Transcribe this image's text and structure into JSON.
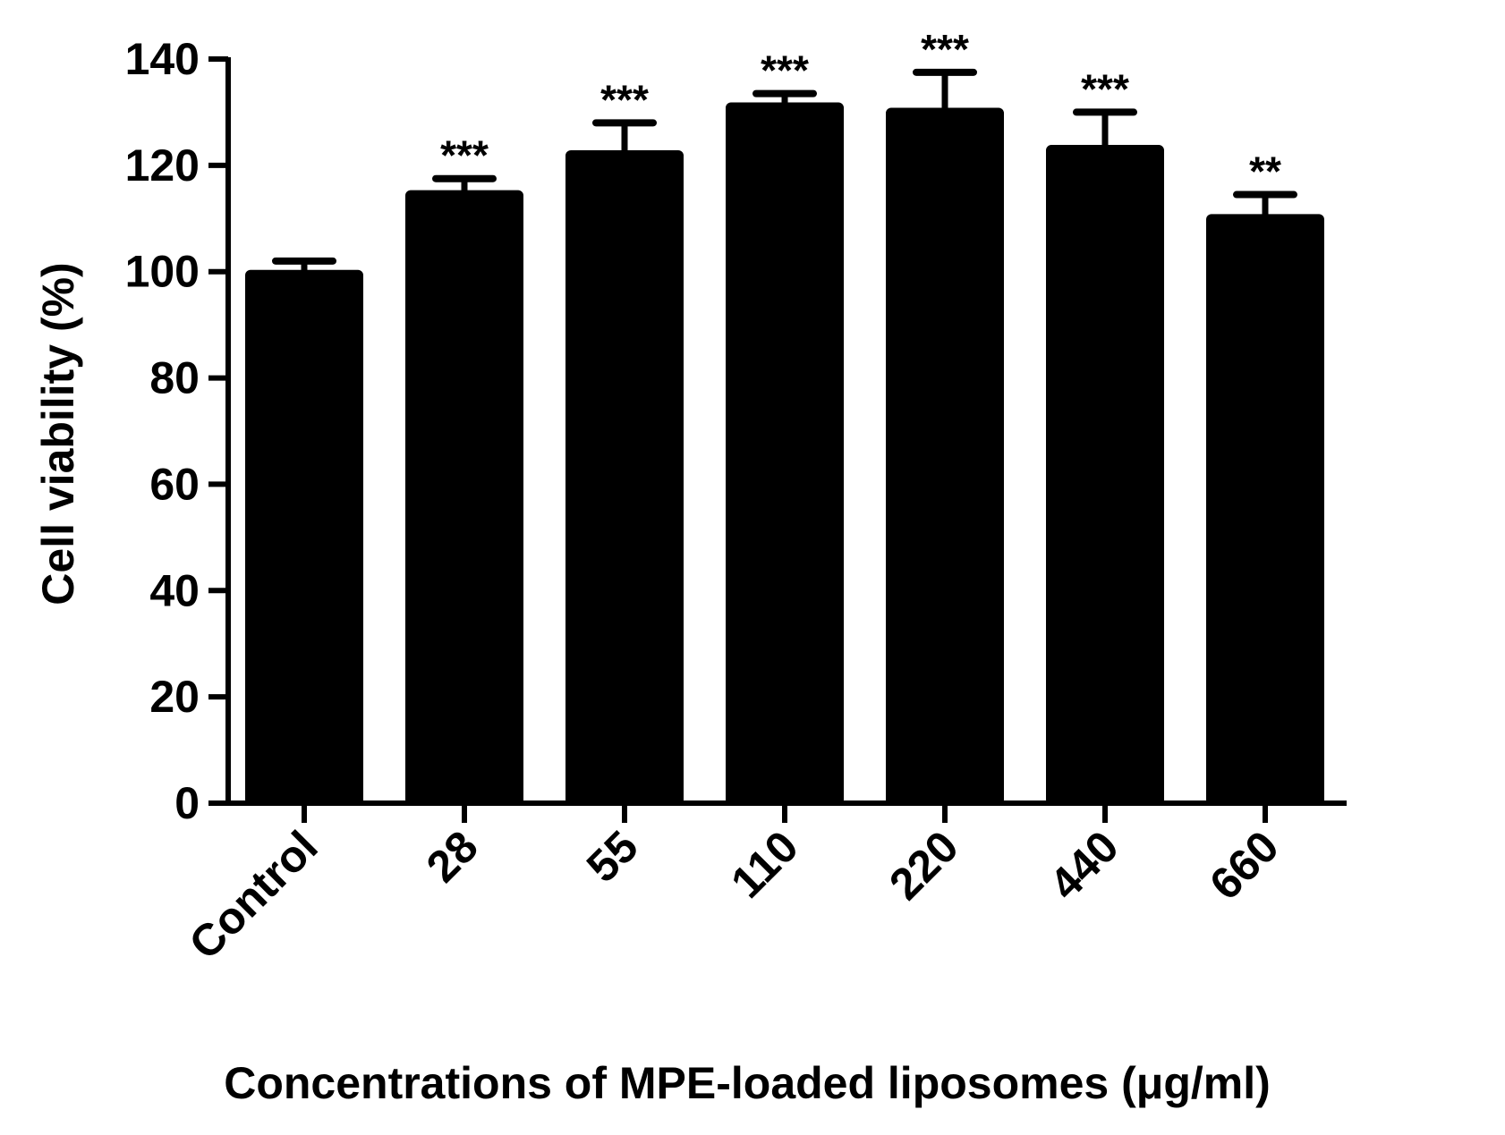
{
  "chart_data": {
    "type": "bar",
    "title": "",
    "xlabel": "Concentrations of MPE-loaded liposomes (μg/ml)",
    "ylabel": "Cell viability (%)",
    "categories": [
      "Control",
      "28",
      "55",
      "110",
      "220",
      "440",
      "660"
    ],
    "values": [
      100,
      115,
      122.5,
      131.5,
      130.5,
      123.5,
      110.5
    ],
    "error": [
      2,
      2.5,
      5.5,
      2,
      7,
      6.5,
      4
    ],
    "significance": [
      "",
      "***",
      "***",
      "***",
      "***",
      "***",
      "**"
    ],
    "ylim": [
      0,
      140
    ],
    "yticks": [
      0,
      20,
      40,
      60,
      80,
      100,
      120,
      140
    ],
    "bar_color": "#000000",
    "grid": false,
    "legend": "none"
  }
}
